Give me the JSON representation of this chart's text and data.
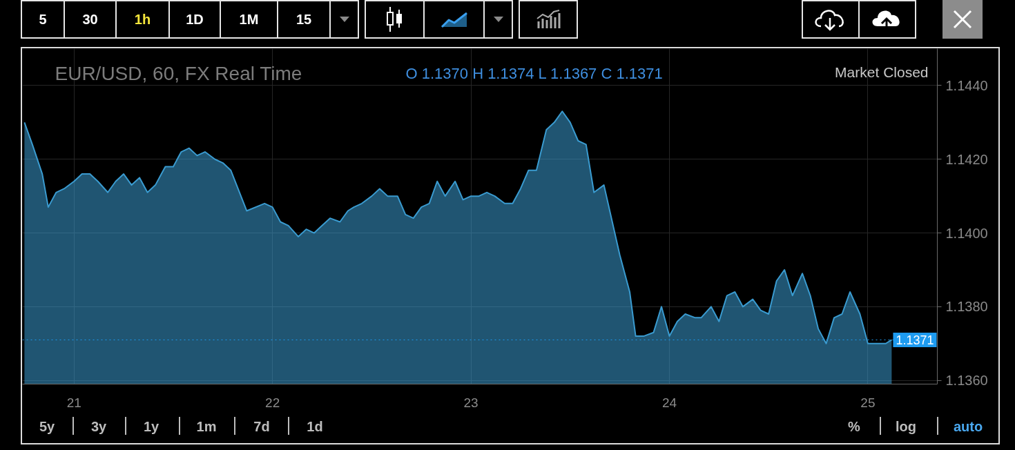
{
  "chart_data": {
    "type": "area",
    "title": "EUR/USD, 60, FX Real Time",
    "subtitle": "O 1.1370 H 1.1374 L 1.1367 C 1.1371",
    "x": [
      20.75,
      20.79,
      20.84,
      20.87,
      20.91,
      20.95,
      21.0,
      21.04,
      21.08,
      21.12,
      21.17,
      21.21,
      21.25,
      21.29,
      21.33,
      21.37,
      21.41,
      21.46,
      21.5,
      21.54,
      21.58,
      21.62,
      21.66,
      21.71,
      21.75,
      21.79,
      21.87,
      21.96,
      22.0,
      22.04,
      22.08,
      22.13,
      22.17,
      22.21,
      22.25,
      22.29,
      22.34,
      22.38,
      22.41,
      22.45,
      22.5,
      22.54,
      22.58,
      22.63,
      22.67,
      22.71,
      22.75,
      22.79,
      22.83,
      22.87,
      22.92,
      22.96,
      23.0,
      23.04,
      23.08,
      23.12,
      23.17,
      23.21,
      23.25,
      23.29,
      23.33,
      23.38,
      23.42,
      23.46,
      23.5,
      23.54,
      23.58,
      23.62,
      23.67,
      23.75,
      23.8,
      23.83,
      23.87,
      23.92,
      23.96,
      24.0,
      24.04,
      24.08,
      24.13,
      24.16,
      24.21,
      24.25,
      24.29,
      24.33,
      24.37,
      24.42,
      24.46,
      24.5,
      24.54,
      24.58,
      24.62,
      24.67,
      24.71,
      24.75,
      24.79,
      24.83,
      24.87,
      24.91,
      24.96,
      25.0,
      25.04,
      25.09,
      25.12
    ],
    "series": [
      {
        "color": "#3a9bd0",
        "values": [
          1.143,
          1.1424,
          1.1416,
          1.1407,
          1.1411,
          1.1412,
          1.1414,
          1.1416,
          1.1416,
          1.1414,
          1.1411,
          1.1414,
          1.1416,
          1.1413,
          1.1415,
          1.1411,
          1.1413,
          1.1418,
          1.1418,
          1.1422,
          1.1423,
          1.1421,
          1.1422,
          1.142,
          1.1419,
          1.1417,
          1.1406,
          1.1408,
          1.1407,
          1.1403,
          1.1402,
          1.1399,
          1.1401,
          1.14,
          1.1402,
          1.1404,
          1.1403,
          1.1406,
          1.1407,
          1.1408,
          1.141,
          1.1412,
          1.141,
          1.141,
          1.1405,
          1.1404,
          1.1407,
          1.1408,
          1.1414,
          1.141,
          1.1414,
          1.1409,
          1.141,
          1.141,
          1.1411,
          1.141,
          1.1408,
          1.1408,
          1.1412,
          1.1417,
          1.1417,
          1.1428,
          1.143,
          1.1433,
          1.143,
          1.1425,
          1.1424,
          1.1411,
          1.1413,
          1.1394,
          1.1384,
          1.1372,
          1.1372,
          1.1373,
          1.138,
          1.1372,
          1.1376,
          1.1378,
          1.1377,
          1.1377,
          1.138,
          1.1376,
          1.1383,
          1.1384,
          1.138,
          1.1382,
          1.1379,
          1.1378,
          1.1387,
          1.139,
          1.1383,
          1.1389,
          1.1383,
          1.1374,
          1.137,
          1.1377,
          1.1378,
          1.1384,
          1.1378,
          1.137,
          1.137,
          1.137,
          1.1371
        ]
      }
    ],
    "xlim": [
      20.74,
      25.35
    ],
    "xticks": [
      21,
      22,
      23,
      24,
      25
    ],
    "ylim": [
      1.1359,
      1.145
    ],
    "yticks": [
      {
        "value": 1.144,
        "label": "1.1440"
      },
      {
        "value": 1.142,
        "label": "1.1420"
      },
      {
        "value": 1.14,
        "label": "1.1400"
      },
      {
        "value": 1.138,
        "label": "1.1380"
      },
      {
        "value": 1.136,
        "label": "1.1360"
      }
    ],
    "grid": true,
    "ref_lines": [
      {
        "axis": "y",
        "value": 1.1371,
        "label": "1.1371",
        "color": "#1e9bf0",
        "line_style": "dotted"
      }
    ],
    "annotations": [
      "5",
      "30",
      "1h",
      "1D",
      "1M",
      "15",
      "Market Closed",
      "5y",
      "3y",
      "1y",
      "1m",
      "7d",
      "1d",
      "%",
      "log",
      "auto"
    ]
  }
}
